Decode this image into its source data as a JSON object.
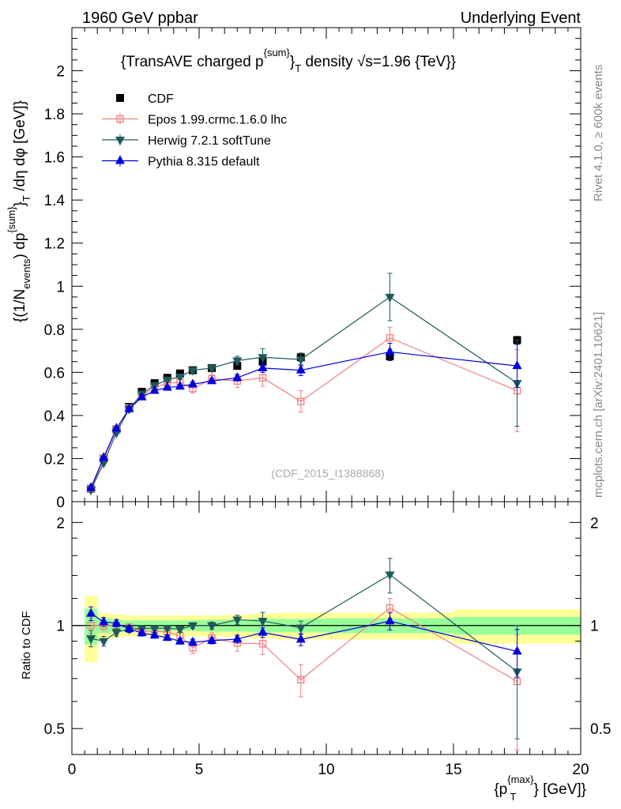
{
  "header": {
    "left": "1960 GeV ppbar",
    "right": "Underlying Event"
  },
  "side": {
    "rivet": "Rivet 4.1.0, ≥ 600k events",
    "mcplots": "mcplots.cern.ch [arXiv:2401.10621]"
  },
  "chart_data": {
    "type": "scatter",
    "title": "{TransAVE charged p^{sum}_T density √s=1.96 {TeV}}",
    "title_parts": {
      "a": "{TransAVE charged p",
      "sup": "{sum}",
      "close": "}",
      "sub": "T",
      "b": " density ",
      "sqrt": "√",
      "c": "s=1.96 {TeV}}"
    },
    "ylabel": "{(1/N_{events}) dp^{sum}_T /dη dφ [GeV]}",
    "ylabel_parts": {
      "a": "{(1/N",
      "sub1": "events",
      "b": ") dp",
      "sup": "{sum}",
      "close": "}",
      "sub2": "T",
      "c": " /dη  dφ [GeV]}"
    },
    "xlabel": "{p_T^{max}} [GeV]}",
    "xlabel_parts": {
      "a": "{p",
      "sup": "{max}",
      "sub": "T",
      "b": "} [GeV]}"
    },
    "ratio_ylabel": "Ratio to CDF",
    "watermark": "(CDF_2015_I1388868)",
    "xlim": [
      0,
      20
    ],
    "ylim": [
      0,
      2.2
    ],
    "ratio_ylim": [
      0.42,
      2.3
    ],
    "x_ticks": [
      "0",
      "5",
      "10",
      "15",
      "20"
    ],
    "y_ticks": [
      "0",
      "0.2",
      "0.4",
      "0.6",
      "0.8",
      "1",
      "1.2",
      "1.4",
      "1.6",
      "1.8",
      "2"
    ],
    "ratio_ticks": [
      "0.5",
      "1",
      "2"
    ],
    "x": [
      0.75,
      1.25,
      1.75,
      2.25,
      2.75,
      3.25,
      3.75,
      4.25,
      4.75,
      5.5,
      6.5,
      7.5,
      9.0,
      12.5,
      17.5
    ],
    "xerr": [
      0.25,
      0.25,
      0.25,
      0.25,
      0.25,
      0.25,
      0.25,
      0.25,
      0.25,
      0.5,
      0.5,
      0.5,
      1.0,
      2.5,
      2.5
    ],
    "band_inner": [
      0.12,
      0.05,
      0.04,
      0.035,
      0.035,
      0.035,
      0.035,
      0.035,
      0.035,
      0.04,
      0.04,
      0.045,
      0.045,
      0.05,
      0.06
    ],
    "band_outer": [
      0.22,
      0.09,
      0.08,
      0.07,
      0.07,
      0.07,
      0.07,
      0.07,
      0.07,
      0.07,
      0.075,
      0.085,
      0.09,
      0.09,
      0.115
    ],
    "series": [
      {
        "name": "CDF",
        "color": "#000000",
        "marker": "square",
        "values": [
          0.06,
          0.2,
          0.335,
          0.44,
          0.51,
          0.55,
          0.575,
          0.595,
          0.61,
          0.62,
          0.63,
          0.65,
          0.67,
          0.675,
          0.75
        ],
        "errors": [
          0.003,
          0.006,
          0.008,
          0.01,
          0.01,
          0.01,
          0.01,
          0.01,
          0.01,
          0.01,
          0.01,
          0.01,
          0.012,
          0.02,
          0.02
        ]
      },
      {
        "name": "Epos 1.99.crmc.1.6.0 lhc",
        "color": "#f08080",
        "marker": "open-square",
        "values": [
          0.06,
          0.2,
          0.335,
          0.435,
          0.49,
          0.53,
          0.55,
          0.555,
          0.525,
          0.57,
          0.56,
          0.575,
          0.465,
          0.76,
          0.515
        ],
        "errors": [
          0.003,
          0.006,
          0.008,
          0.01,
          0.012,
          0.012,
          0.015,
          0.015,
          0.02,
          0.02,
          0.03,
          0.04,
          0.05,
          0.05,
          0.19
        ]
      },
      {
        "name": "Herwig 7.2.1 softTune",
        "color": "#1f5a5a",
        "marker": "triangle-down",
        "values": [
          0.055,
          0.18,
          0.32,
          0.43,
          0.5,
          0.54,
          0.565,
          0.58,
          0.61,
          0.62,
          0.655,
          0.67,
          0.66,
          0.95,
          0.55
        ],
        "errors": [
          0.003,
          0.006,
          0.008,
          0.01,
          0.01,
          0.01,
          0.01,
          0.012,
          0.012,
          0.015,
          0.02,
          0.04,
          0.03,
          0.11,
          0.2
        ]
      },
      {
        "name": "Pythia 8.315 default",
        "color": "#0000dd",
        "marker": "triangle-up",
        "values": [
          0.065,
          0.205,
          0.34,
          0.43,
          0.485,
          0.515,
          0.53,
          0.535,
          0.545,
          0.56,
          0.575,
          0.62,
          0.61,
          0.695,
          0.63
        ],
        "errors": [
          0.003,
          0.006,
          0.008,
          0.01,
          0.01,
          0.01,
          0.01,
          0.01,
          0.012,
          0.012,
          0.015,
          0.02,
          0.025,
          0.04,
          0.1
        ]
      }
    ]
  }
}
